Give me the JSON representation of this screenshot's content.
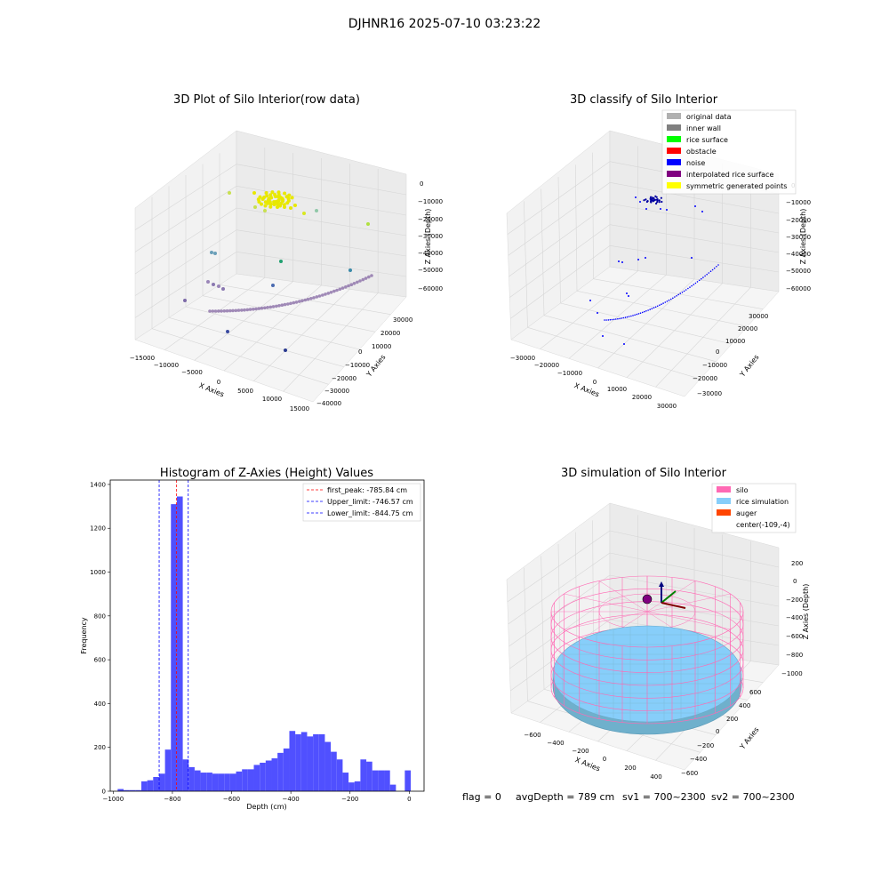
{
  "figure": {
    "suptitle": "DJHNR16 2025-07-10 03:23:22",
    "status": {
      "flag": "flag = 0",
      "avgdepth": "avgDepth = 789 cm",
      "sv1": "sv1 = 700~2300",
      "sv2": "sv2 = 700~2300"
    }
  },
  "colors": {
    "hist_bar": "#5050ff",
    "peak_line": "#ff0000",
    "limit_line": "#0000ff",
    "silo": "#ff69b4",
    "rice": "#87cefa",
    "auger": "#ff4500",
    "wall_points": "#8b6fa8",
    "noise_points": "#0000ff",
    "surface_points": "#e8e800"
  },
  "chart_data": [
    {
      "type": "scatter",
      "title": "3D Plot of Silo Interior(row data)",
      "xlabel": "X Axies",
      "ylabel": "Y Axies",
      "zlabel": "Z Axies (Depth)",
      "x_ticks": [
        "−15000",
        "−10000",
        "−5000",
        "0",
        "5000",
        "10000",
        "15000"
      ],
      "y_ticks": [
        "30000",
        "20000",
        "10000",
        "0",
        "−10000",
        "−20000",
        "−30000",
        "−40000"
      ],
      "z_ticks": [
        "0",
        "−10000",
        "−20000",
        "−30000",
        "−40000",
        "−50000",
        "−60000"
      ]
    },
    {
      "type": "scatter",
      "title": "3D classify of Silo Interior",
      "xlabel": "X Axies",
      "ylabel": "Y Axies",
      "zlabel": "Z Axies (Depth)",
      "x_ticks": [
        "−30000",
        "−20000",
        "−10000",
        "0",
        "10000",
        "20000",
        "30000"
      ],
      "y_ticks": [
        "30000",
        "20000",
        "10000",
        "0",
        "−10000",
        "−20000",
        "−30000"
      ],
      "z_ticks": [
        "0",
        "−10000",
        "−20000",
        "−30000",
        "−40000",
        "−50000",
        "−60000"
      ],
      "legend": [
        {
          "label": "original data",
          "color": "#b0b0b0"
        },
        {
          "label": "inner wall",
          "color": "#808080"
        },
        {
          "label": "rice surface",
          "color": "#00ff00"
        },
        {
          "label": "obstacle",
          "color": "#ff0000"
        },
        {
          "label": "noise",
          "color": "#0000ff"
        },
        {
          "label": "interpolated rice surface",
          "color": "#800080"
        },
        {
          "label": "symmetric generated points",
          "color": "#ffff00"
        }
      ]
    },
    {
      "type": "bar",
      "title": "Histogram of Z-Axies (Height) Values",
      "xlabel": "Depth (cm)",
      "ylabel": "Frequency",
      "xlim": [
        -1010,
        50
      ],
      "ylim": [
        0,
        1420
      ],
      "x_ticks": [
        -1000,
        -800,
        -600,
        -400,
        -200,
        0
      ],
      "x_tick_labels": [
        "−1000",
        "−800",
        "−600",
        "−400",
        "−200",
        "0"
      ],
      "y_ticks": [
        0,
        200,
        400,
        600,
        800,
        1000,
        1200,
        1400
      ],
      "bin_width": 20,
      "bins_start": [
        -985,
        -965,
        -945,
        -925,
        -905,
        -885,
        -865,
        -845,
        -825,
        -805,
        -785,
        -765,
        -745,
        -725,
        -705,
        -685,
        -665,
        -645,
        -625,
        -605,
        -585,
        -565,
        -545,
        -525,
        -505,
        -485,
        -465,
        -445,
        -425,
        -405,
        -385,
        -365,
        -345,
        -325,
        -305,
        -285,
        -265,
        -245,
        -225,
        -205,
        -185,
        -165,
        -145,
        -125,
        -105,
        -85,
        -65,
        -45,
        -25,
        -15
      ],
      "values": [
        10,
        5,
        5,
        5,
        45,
        50,
        65,
        80,
        190,
        1310,
        1345,
        145,
        110,
        95,
        85,
        85,
        80,
        80,
        80,
        80,
        90,
        100,
        100,
        120,
        130,
        140,
        150,
        175,
        195,
        275,
        260,
        270,
        250,
        260,
        260,
        225,
        180,
        145,
        85,
        40,
        45,
        145,
        135,
        95,
        95,
        95,
        30,
        0,
        0,
        95
      ],
      "vlines": [
        {
          "value": -785.84,
          "color": "#ff0000"
        },
        {
          "value": -746.57,
          "color": "#0000ff"
        },
        {
          "value": -844.75,
          "color": "#0000ff"
        }
      ],
      "legend": [
        {
          "label": "first_peak: -785.84 cm",
          "color": "#ff0000"
        },
        {
          "label": "Upper_limit: -746.57 cm",
          "color": "#0000ff"
        },
        {
          "label": "Lower_limit: -844.75 cm",
          "color": "#0000ff"
        }
      ]
    },
    {
      "type": "scatter",
      "title": "3D simulation of Silo Interior",
      "xlabel": "X Axies",
      "ylabel": "Y Axies",
      "zlabel": "Z Axies (Depth)",
      "x_ticks": [
        "−600",
        "−400",
        "−200",
        "0",
        "200",
        "400"
      ],
      "y_ticks": [
        "600",
        "400",
        "200",
        "0",
        "−200",
        "−400",
        "−600"
      ],
      "z_ticks": [
        "200",
        "0",
        "−200",
        "−400",
        "−600",
        "−800",
        "−1000"
      ],
      "legend": [
        {
          "label": "silo",
          "color": "#ff69b4"
        },
        {
          "label": "rice simulation",
          "color": "#87cefa"
        },
        {
          "label": "auger",
          "color": "#ff4500"
        },
        {
          "label": "center(-109,-4)",
          "color": ""
        }
      ]
    }
  ]
}
